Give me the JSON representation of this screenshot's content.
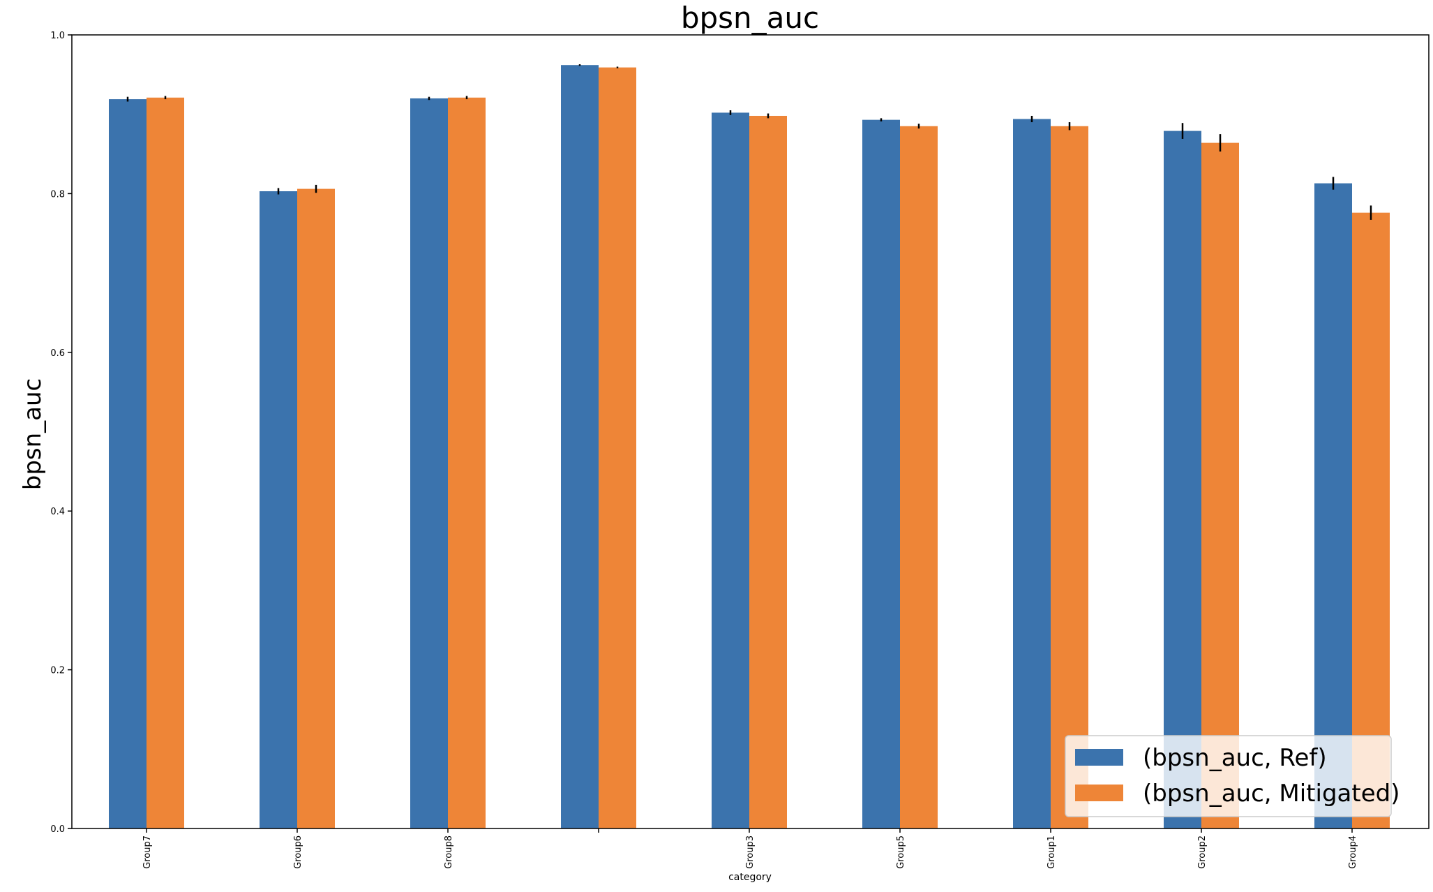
{
  "chart_data": {
    "type": "bar",
    "title": "bpsn_auc",
    "xlabel": "category",
    "ylabel": "bpsn_auc",
    "ylim": [
      0.0,
      1.0
    ],
    "yticks": [
      0.0,
      0.2,
      0.4,
      0.6,
      0.8,
      1.0
    ],
    "ytick_labels": [
      "0.0",
      "0.2",
      "0.4",
      "0.6",
      "0.8",
      "1.0"
    ],
    "grid": false,
    "legend_position": "lower-right",
    "categories": [
      "Group7",
      "Group6",
      "Group8",
      "",
      "Group3",
      "Group5",
      "Group1",
      "Group2",
      "Group4"
    ],
    "series": [
      {
        "name": "(bpsn_auc, Ref)",
        "color": "#3b73ad",
        "values": [
          0.919,
          0.803,
          0.92,
          0.962,
          0.902,
          0.893,
          0.894,
          0.879,
          0.813
        ],
        "errors": [
          0.003,
          0.004,
          0.002,
          0.001,
          0.003,
          0.002,
          0.004,
          0.01,
          0.008
        ]
      },
      {
        "name": "(bpsn_auc, Mitigated)",
        "color": "#ee8537",
        "values": [
          0.921,
          0.806,
          0.921,
          0.959,
          0.898,
          0.885,
          0.885,
          0.864,
          0.776
        ],
        "errors": [
          0.002,
          0.005,
          0.002,
          0.001,
          0.003,
          0.003,
          0.005,
          0.011,
          0.009
        ]
      }
    ]
  }
}
